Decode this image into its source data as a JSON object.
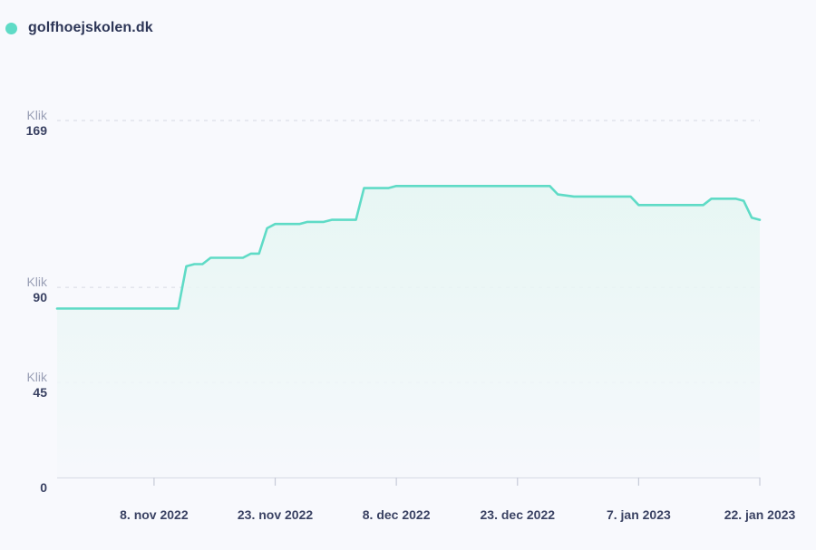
{
  "legend": {
    "label": "golfhoejskolen.dk",
    "color": "#5fdbc6"
  },
  "colors": {
    "line": "#5fdbc6",
    "grid": "#d6d9e4",
    "axis": "#c6cad8",
    "fill_top": "#e4f6f2",
    "fill_bottom": "#f6f8fc"
  },
  "chart_data": {
    "type": "area",
    "title": "",
    "grid": true,
    "legend_position": "top-left",
    "ylim": [
      0,
      169
    ],
    "y_ticks": [
      {
        "unit": "Klik",
        "value": "169",
        "v": 169
      },
      {
        "unit": "Klik",
        "value": "90",
        "v": 90
      },
      {
        "unit": "Klik",
        "value": "45",
        "v": 45
      },
      {
        "unit": "",
        "value": "0",
        "v": 0
      }
    ],
    "x_range": [
      "2022-10-27",
      "2023-01-22"
    ],
    "x_ticks": [
      {
        "label": "8. nov 2022",
        "date": "2022-11-08"
      },
      {
        "label": "23. nov 2022",
        "date": "2022-11-23"
      },
      {
        "label": "8. dec 2022",
        "date": "2022-12-08"
      },
      {
        "label": "23. dec 2022",
        "date": "2022-12-23"
      },
      {
        "label": "7. jan 2023",
        "date": "2023-01-07"
      },
      {
        "label": "22. jan 2023",
        "date": "2023-01-22"
      }
    ],
    "series": [
      {
        "name": "golfhoejskolen.dk",
        "points": [
          [
            "2022-10-27",
            80
          ],
          [
            "2022-11-11",
            80
          ],
          [
            "2022-11-12",
            100
          ],
          [
            "2022-11-13",
            101
          ],
          [
            "2022-11-14",
            101
          ],
          [
            "2022-11-15",
            104
          ],
          [
            "2022-11-19",
            104
          ],
          [
            "2022-11-20",
            106
          ],
          [
            "2022-11-21",
            106
          ],
          [
            "2022-11-22",
            118
          ],
          [
            "2022-11-23",
            120
          ],
          [
            "2022-11-26",
            120
          ],
          [
            "2022-11-27",
            121
          ],
          [
            "2022-11-29",
            121
          ],
          [
            "2022-11-30",
            122
          ],
          [
            "2022-12-03",
            122
          ],
          [
            "2022-12-04",
            137
          ],
          [
            "2022-12-07",
            137
          ],
          [
            "2022-12-08",
            138
          ],
          [
            "2022-12-27",
            138
          ],
          [
            "2022-12-28",
            134
          ],
          [
            "2022-12-30",
            133
          ],
          [
            "2023-01-06",
            133
          ],
          [
            "2023-01-07",
            129
          ],
          [
            "2023-01-15",
            129
          ],
          [
            "2023-01-16",
            132
          ],
          [
            "2023-01-19",
            132
          ],
          [
            "2023-01-20",
            131
          ],
          [
            "2023-01-21",
            123
          ],
          [
            "2023-01-22",
            122
          ]
        ]
      }
    ]
  }
}
